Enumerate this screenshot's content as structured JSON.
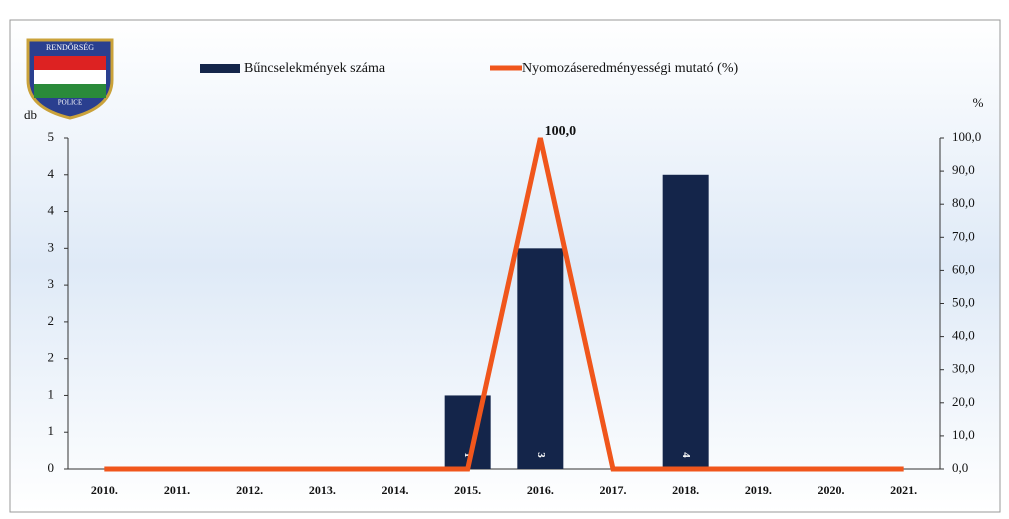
{
  "logo": {
    "top": "RENDŐRSÉG",
    "bottom": "POLICE"
  },
  "chart_data": {
    "type": "bar-line",
    "y_label": "db",
    "y2_label": "%",
    "categories": [
      "2010.",
      "2011.",
      "2012.",
      "2013.",
      "2014.",
      "2015.",
      "2016.",
      "2017.",
      "2018.",
      "2019.",
      "2020.",
      "2021."
    ],
    "series": [
      {
        "name": "Bűncselekmények száma",
        "type": "bar",
        "color": "#14254a",
        "values": [
          0,
          0,
          0,
          0,
          0,
          1,
          3,
          0,
          4,
          0,
          0,
          0
        ]
      },
      {
        "name": "Nyomozáseredményességi mutató (%)",
        "type": "line",
        "axis": "y2",
        "color": "#f0561c",
        "values": [
          0,
          0,
          0,
          0,
          0,
          0,
          100,
          0,
          0,
          0,
          0,
          0
        ],
        "value_labels": [
          null,
          null,
          null,
          null,
          null,
          null,
          "100,0",
          null,
          null,
          null,
          null,
          null
        ]
      }
    ],
    "ylim": [
      0,
      4.5
    ],
    "yticks": [
      0,
      {
        "value": 0.5,
        "label": "1"
      },
      1,
      {
        "value": 1.5,
        "label": "2"
      },
      2,
      {
        "value": 2.5,
        "label": "3"
      },
      3,
      {
        "value": 3.5,
        "label": "4"
      },
      4,
      {
        "value": 4.5,
        "label": "5"
      }
    ],
    "y2lim": [
      0,
      100
    ],
    "y2ticks": [
      {
        "value": 0,
        "label": "0,0"
      },
      {
        "value": 10,
        "label": "10,0"
      },
      {
        "value": 20,
        "label": "20,0"
      },
      {
        "value": 30,
        "label": "30,0"
      },
      {
        "value": 40,
        "label": "40,0"
      },
      {
        "value": 50,
        "label": "50,0"
      },
      {
        "value": 60,
        "label": "60,0"
      },
      {
        "value": 70,
        "label": "70,0"
      },
      {
        "value": 80,
        "label": "80,0"
      },
      {
        "value": 90,
        "label": "90,0"
      },
      {
        "value": 100,
        "label": "100,0"
      }
    ],
    "legend": "top"
  }
}
